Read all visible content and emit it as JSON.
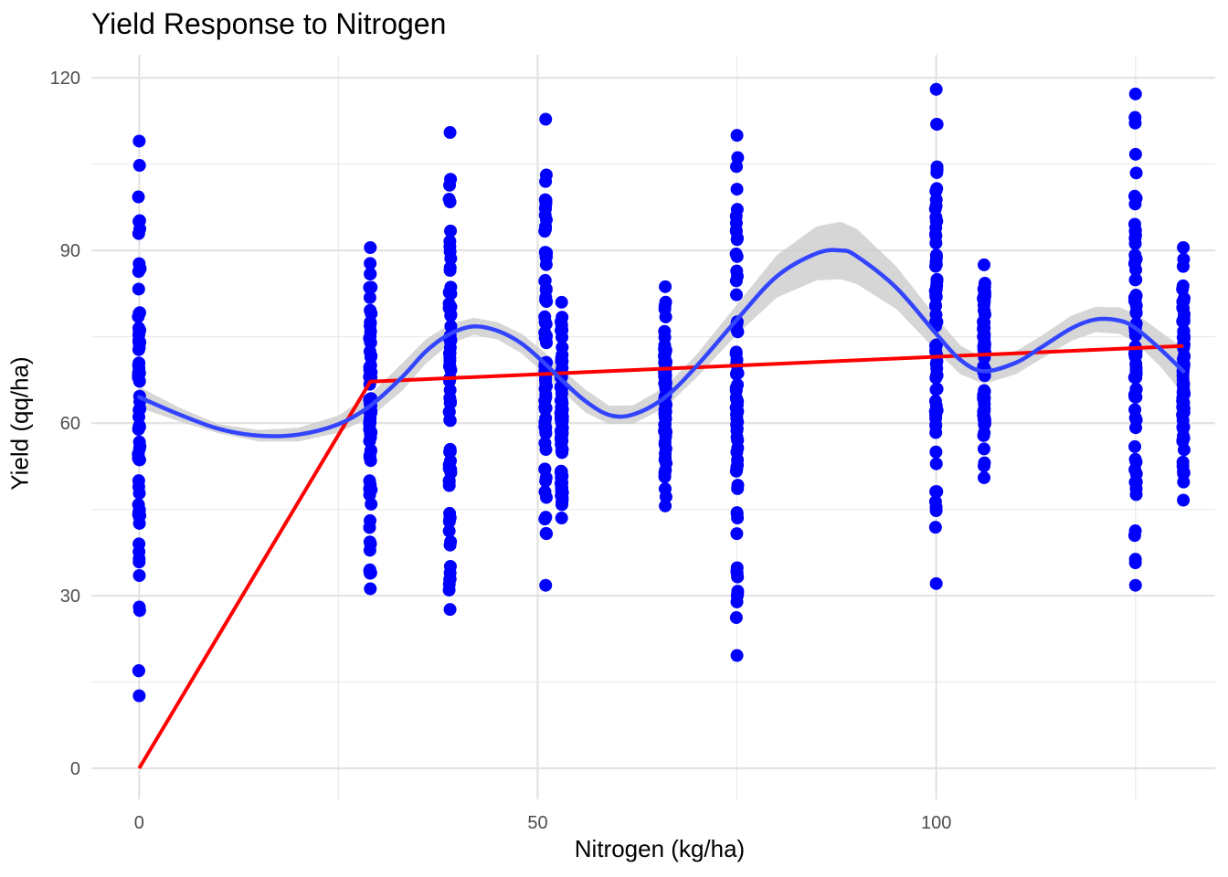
{
  "chart_data": {
    "type": "scatter",
    "title": "Yield Response to Nitrogen",
    "xlabel": "Nitrogen (kg/ha)",
    "ylabel": "Yield (qq/ha)",
    "xlim": [
      -6,
      135
    ],
    "ylim": [
      -5.4,
      124
    ],
    "x_ticks": [
      0,
      50,
      100
    ],
    "x_tick_labels": [
      "0",
      "50",
      "100"
    ],
    "y_ticks": [
      0,
      30,
      60,
      90,
      120
    ],
    "y_tick_labels": [
      "0",
      "30",
      "60",
      "90",
      "120"
    ],
    "grid": true,
    "legend": "none",
    "series": [
      {
        "type": "scatter",
        "color": "#0000ff",
        "groups": [
          {
            "x": 0,
            "min": 12.6,
            "max": 109.0
          },
          {
            "x": 29,
            "min": 31.2,
            "max": 90.5
          },
          {
            "x": 39,
            "min": 27.6,
            "max": 110.5
          },
          {
            "x": 51,
            "min": 31.8,
            "max": 112.8
          },
          {
            "x": 53,
            "min": 43.5,
            "max": 81.0
          },
          {
            "x": 66,
            "min": 45.6,
            "max": 83.7
          },
          {
            "x": 75,
            "min": 19.6,
            "max": 110.0
          },
          {
            "x": 100,
            "min": 32.1,
            "max": 118.0
          },
          {
            "x": 106,
            "min": 50.5,
            "max": 87.5
          },
          {
            "x": 125,
            "min": 31.8,
            "max": 117.2
          },
          {
            "x": 131,
            "min": 46.6,
            "max": 90.5
          }
        ]
      },
      {
        "type": "line",
        "color": "#ff0000",
        "x": [
          0,
          29,
          131
        ],
        "y": [
          0,
          67.2,
          73.4
        ]
      },
      {
        "type": "smooth",
        "color": "#3344ff",
        "band_color": "#cccccc",
        "x": [
          0,
          5,
          10,
          15,
          20,
          25,
          29,
          33,
          36,
          39,
          42,
          45,
          48,
          51,
          53,
          56,
          59,
          62,
          66,
          70,
          75,
          80,
          85,
          88,
          90,
          95,
          100,
          103,
          106,
          110,
          113,
          117,
          120,
          123,
          125,
          128,
          131
        ],
        "y": [
          64.5,
          61.5,
          59.0,
          57.8,
          58.0,
          59.8,
          63.0,
          68.0,
          72.5,
          75.5,
          76.8,
          76.0,
          73.8,
          70.2,
          67.5,
          63.8,
          61.4,
          61.5,
          64.5,
          70.0,
          78.0,
          85.5,
          89.5,
          90.0,
          89.0,
          83.5,
          75.5,
          71.0,
          69.0,
          70.5,
          73.0,
          76.5,
          78.0,
          77.8,
          76.5,
          73.0,
          69.0
        ],
        "lo": [
          62.7,
          60.3,
          58.2,
          56.8,
          56.8,
          58.3,
          61.0,
          65.6,
          70.4,
          73.8,
          75.3,
          74.5,
          72.1,
          68.3,
          65.6,
          61.8,
          59.8,
          59.9,
          62.7,
          68.0,
          75.4,
          81.8,
          84.8,
          85.0,
          84.2,
          79.8,
          72.6,
          68.5,
          66.8,
          68.5,
          71.0,
          74.3,
          75.8,
          75.5,
          74.0,
          70.0,
          65.0
        ],
        "hi": [
          66.3,
          62.7,
          59.8,
          58.8,
          59.2,
          61.3,
          65.0,
          70.4,
          74.6,
          77.2,
          78.3,
          77.5,
          75.5,
          72.1,
          69.4,
          65.8,
          63.0,
          63.1,
          66.3,
          72.0,
          80.6,
          89.2,
          94.2,
          95.0,
          93.8,
          87.2,
          78.4,
          73.5,
          71.2,
          72.5,
          75.0,
          78.7,
          80.2,
          80.1,
          79.0,
          76.0,
          73.0
        ]
      }
    ]
  }
}
